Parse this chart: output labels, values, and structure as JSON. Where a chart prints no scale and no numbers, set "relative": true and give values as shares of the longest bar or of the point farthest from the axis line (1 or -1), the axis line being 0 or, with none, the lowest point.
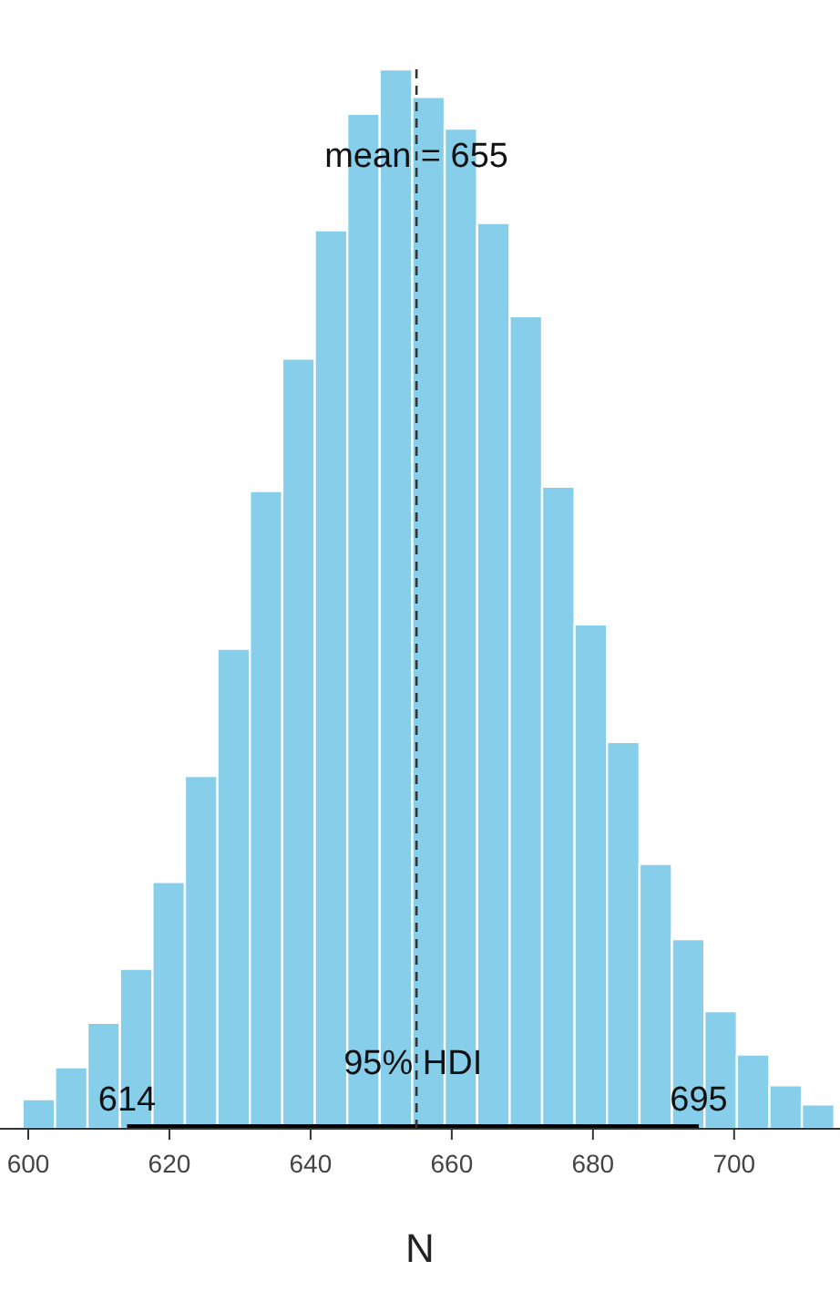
{
  "chart_data": {
    "type": "bar",
    "relative": true,
    "xlabel": "N",
    "color": "#87ceeb",
    "x": [
      601.5,
      606.1,
      610.7,
      615.3,
      619.9,
      624.5,
      629.1,
      633.7,
      638.3,
      642.9,
      647.5,
      652.1,
      656.7,
      661.3,
      665.9,
      670.5,
      675.1,
      679.7,
      684.3,
      688.9,
      693.5,
      698.1,
      702.7,
      707.3,
      711.9
    ],
    "values": [
      0.028,
      0.058,
      0.1,
      0.151,
      0.233,
      0.333,
      0.453,
      0.602,
      0.727,
      0.848,
      0.958,
      1,
      0.974,
      0.944,
      0.855,
      0.767,
      0.606,
      0.476,
      0.365,
      0.25,
      0.179,
      0.111,
      0.07,
      0.041,
      0.023
    ],
    "series": [
      {
        "type": "line",
        "x": [
          614,
          695
        ],
        "values": [
          0,
          0
        ],
        "color": "#000000"
      }
    ],
    "ref_lines": [
      {
        "axis": "x",
        "value": 655,
        "label": "mean = 655",
        "line_style": "dashed",
        "color": "#333333"
      }
    ],
    "annotations": [
      "95% HDI",
      {
        "text": "614",
        "x": 614,
        "y": 0
      },
      {
        "text": "695",
        "x": 695,
        "y": 0
      }
    ],
    "xlim": [
      596,
      715
    ],
    "xticks": [
      600,
      620,
      640,
      660,
      680,
      700
    ],
    "grid": false,
    "legend": false
  }
}
